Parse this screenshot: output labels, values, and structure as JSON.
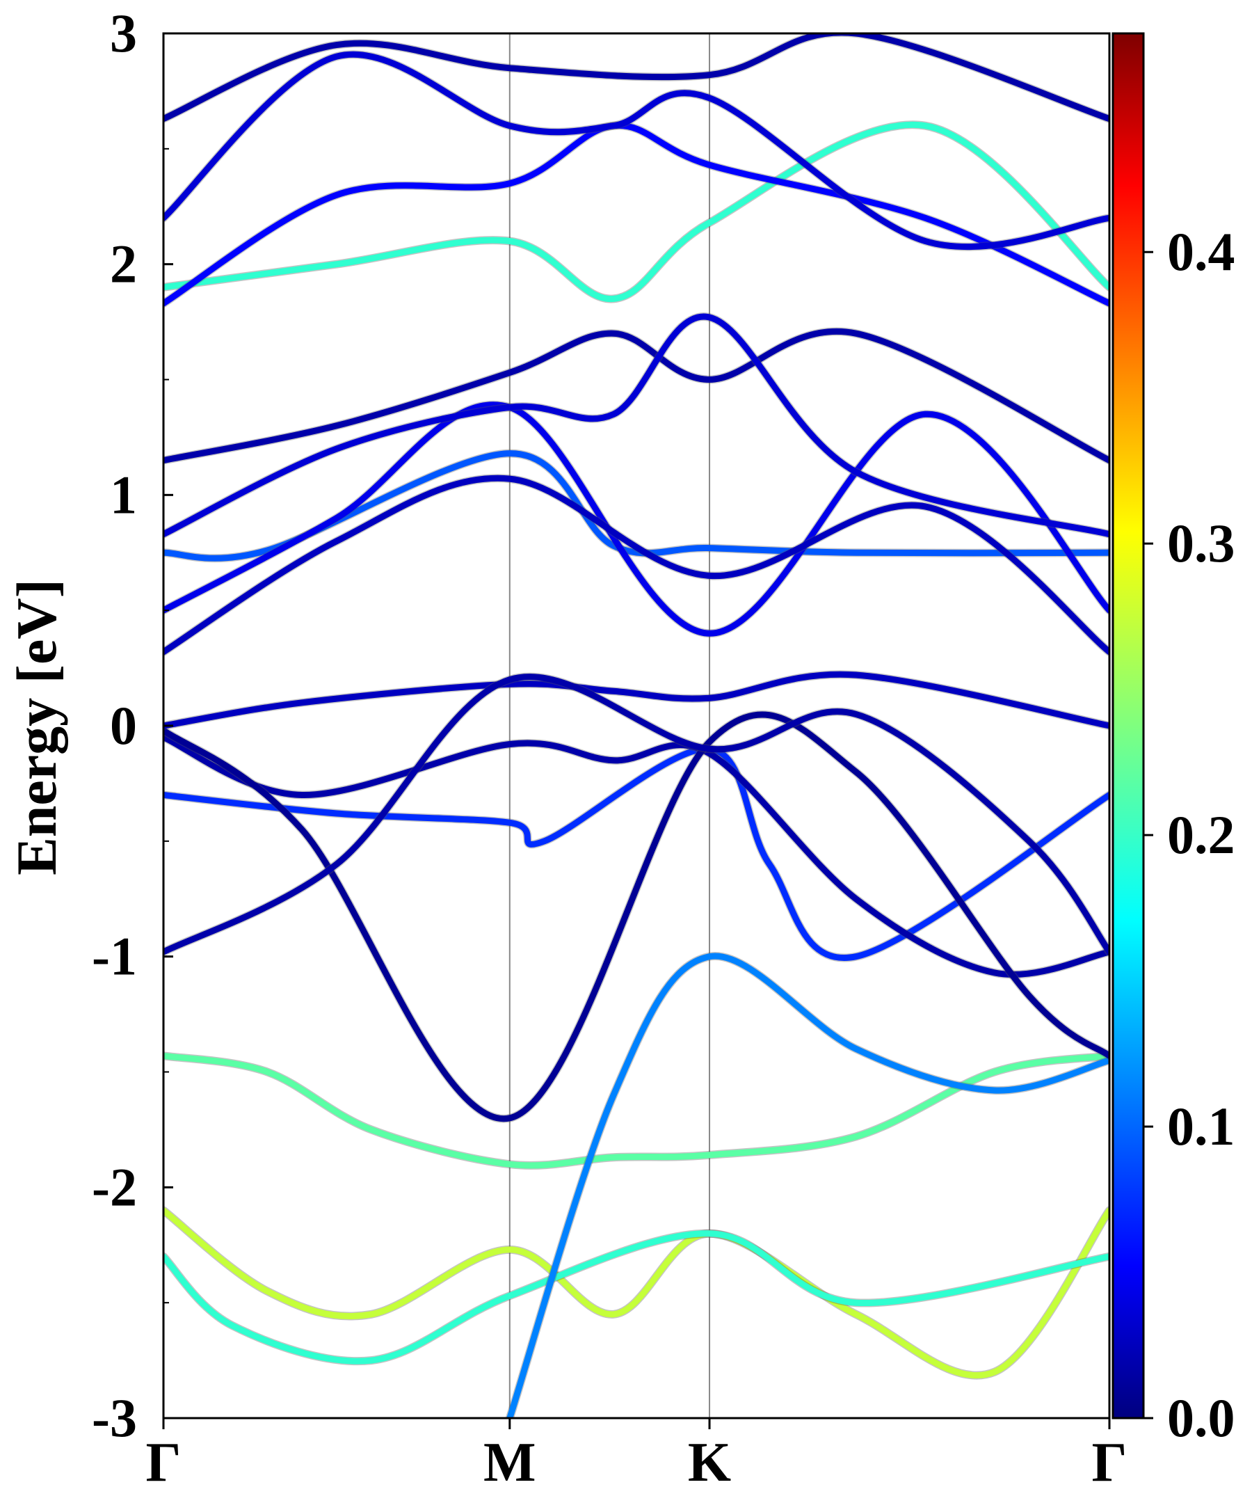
{
  "chart_data": {
    "type": "line",
    "title": "",
    "xlabel": "",
    "ylabel": "Energy [eV]",
    "ylim": [
      -3,
      3
    ],
    "y_ticks": [
      "-3",
      "-2",
      "-1",
      "0",
      "1",
      "2",
      "3"
    ],
    "k_points": [
      "Γ",
      "M",
      "K",
      "Γ"
    ],
    "k_positions": [
      0,
      1,
      1.577,
      2.732
    ],
    "grid": "vertical lines at high-symmetry points",
    "colorbar": {
      "colormap": "jet",
      "range": [
        0.0,
        0.475
      ],
      "ticks": [
        "0.0",
        "0.1",
        "0.2",
        "0.3",
        "0.4"
      ]
    },
    "series": [
      {
        "k": [
          0,
          0.3,
          0.6,
          1,
          1.3,
          1.577,
          2.0,
          2.4,
          2.732
        ],
        "energy": [
          -1.43,
          -1.5,
          -1.75,
          -1.9,
          -1.87,
          -1.86,
          -1.78,
          -1.5,
          -1.43
        ],
        "weight": 0.22
      },
      {
        "k": [
          0,
          0.3,
          0.6,
          1,
          1.3,
          1.577,
          2.0,
          2.4,
          2.732
        ],
        "energy": [
          -2.1,
          -2.45,
          -2.55,
          -2.27,
          -2.55,
          -2.2,
          -2.55,
          -2.8,
          -2.1
        ],
        "weight": 0.27
      },
      {
        "k": [
          0,
          0.2,
          0.6,
          1,
          1.577,
          2.0,
          2.732
        ],
        "energy": [
          -2.3,
          -2.6,
          -2.75,
          -2.47,
          -2.2,
          -2.5,
          -2.3
        ],
        "weight": 0.2
      },
      {
        "k": [
          1,
          1.3,
          1.577,
          2.0,
          2.4,
          2.732
        ],
        "energy": [
          -3.0,
          -1.6,
          -1.0,
          -1.4,
          -1.58,
          -1.45
        ],
        "weight": 0.12
      },
      {
        "k": [
          0,
          0.5,
          1,
          1.1,
          1.577,
          1.75,
          2.0,
          2.732
        ],
        "energy": [
          -0.3,
          -0.38,
          -0.42,
          -0.5,
          -0.1,
          -0.6,
          -1.0,
          -0.3
        ],
        "weight": 0.08
      },
      {
        "k": [
          0,
          0.4,
          1,
          1.3,
          1.577,
          2.0,
          2.4,
          2.732
        ],
        "energy": [
          -0.05,
          -0.3,
          -0.08,
          -0.15,
          -0.12,
          -0.75,
          -1.07,
          -0.98
        ],
        "weight": 0.02
      },
      {
        "k": [
          0,
          0.4,
          1,
          1.577,
          2.0,
          2.5,
          2.732
        ],
        "energy": [
          -0.02,
          -0.45,
          -1.7,
          -0.07,
          -0.2,
          -1.17,
          -1.43
        ],
        "weight": 0.01
      },
      {
        "k": [
          0,
          0.4,
          1,
          1.3,
          1.577,
          2.0,
          2.732
        ],
        "energy": [
          0.0,
          0.1,
          0.18,
          0.15,
          0.12,
          0.22,
          0.0
        ],
        "weight": 0.03
      },
      {
        "k": [
          0,
          0.5,
          1,
          1.577,
          2.0,
          2.5,
          2.732
        ],
        "energy": [
          -0.98,
          -0.6,
          0.2,
          -0.1,
          0.05,
          -0.5,
          -0.98
        ],
        "weight": 0.02
      },
      {
        "k": [
          0,
          0.3,
          1,
          1.3,
          1.577,
          2.0,
          2.732
        ],
        "energy": [
          0.75,
          0.76,
          1.18,
          0.78,
          0.77,
          0.75,
          0.75
        ],
        "weight": 0.1
      },
      {
        "k": [
          0,
          0.5,
          1,
          1.577,
          2.2,
          2.732
        ],
        "energy": [
          0.5,
          0.9,
          1.38,
          0.4,
          1.35,
          0.5
        ],
        "weight": 0.05
      },
      {
        "k": [
          0,
          0.5,
          1,
          1.577,
          2.2,
          2.732
        ],
        "energy": [
          0.32,
          0.8,
          1.07,
          0.65,
          0.95,
          0.32
        ],
        "weight": 0.03
      },
      {
        "k": [
          0,
          0.5,
          1,
          1.3,
          1.577,
          2.0,
          2.732
        ],
        "energy": [
          1.15,
          1.3,
          1.53,
          1.7,
          1.5,
          1.7,
          1.15
        ],
        "weight": 0.02
      },
      {
        "k": [
          0,
          0.5,
          1,
          1.3,
          1.577,
          2.0,
          2.732
        ],
        "energy": [
          0.83,
          1.2,
          1.38,
          1.35,
          1.77,
          1.1,
          0.83
        ],
        "weight": 0.04
      },
      {
        "k": [
          0,
          0.5,
          1,
          1.3,
          1.577,
          2.2,
          2.732
        ],
        "energy": [
          1.9,
          2.0,
          2.1,
          1.85,
          2.18,
          2.6,
          1.9
        ],
        "weight": 0.2
      },
      {
        "k": [
          0,
          0.5,
          1,
          1.3,
          1.577,
          2.2,
          2.732
        ],
        "energy": [
          1.83,
          2.3,
          2.35,
          2.6,
          2.43,
          2.2,
          1.83
        ],
        "weight": 0.06
      },
      {
        "k": [
          0,
          0.5,
          1,
          1.3,
          1.577,
          2.2,
          2.732
        ],
        "energy": [
          2.2,
          2.9,
          2.6,
          2.6,
          2.72,
          2.1,
          2.2
        ],
        "weight": 0.04
      },
      {
        "k": [
          0,
          0.5,
          1,
          1.577,
          2.0,
          2.732
        ],
        "energy": [
          2.63,
          2.95,
          2.85,
          2.82,
          3.0,
          2.63
        ],
        "weight": 0.02
      }
    ]
  }
}
